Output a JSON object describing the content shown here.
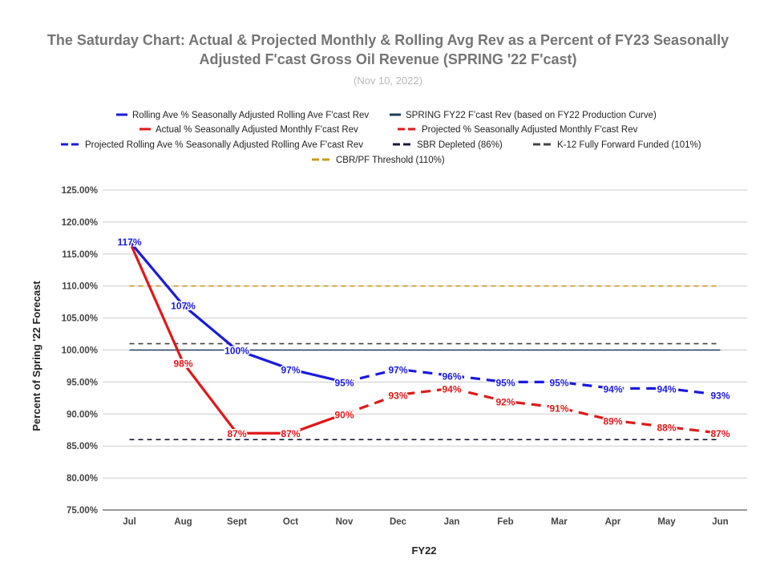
{
  "chart_data": {
    "type": "line",
    "title_line1": "The Saturday Chart: Actual & Projected Monthly & Rolling Avg Rev as a Percent of FY23 Seasonally",
    "title_line2": "Adjusted F'cast Gross Oil Revenue (SPRING '22 F'cast)",
    "subtitle": "(Nov 10, 2022)",
    "xlabel": "FY22",
    "ylabel": "Percent of Spring '22 Forecast",
    "categories": [
      "Jul",
      "Aug",
      "Sept",
      "Oct",
      "Nov",
      "Dec",
      "Jan",
      "Feb",
      "Mar",
      "Apr",
      "May",
      "Jun"
    ],
    "ylim": [
      75,
      125
    ],
    "yticks": [
      "75.00%",
      "80.00%",
      "85.00%",
      "90.00%",
      "95.00%",
      "100.00%",
      "105.00%",
      "110.00%",
      "115.00%",
      "120.00%",
      "125.00%"
    ],
    "grid": true,
    "legend_position": "top",
    "series": [
      {
        "name": "Rolling Ave % Seasonally Adjusted Rolling Ave F'cast Rev",
        "color": "#1a1ae0",
        "style": "solid",
        "values": [
          117,
          107,
          100,
          97,
          95,
          null,
          null,
          null,
          null,
          null,
          null,
          null
        ],
        "labels": [
          "117%",
          "107%",
          "100%",
          "97%",
          "95%",
          "",
          "",
          "",
          "",
          "",
          "",
          ""
        ]
      },
      {
        "name": "SPRING FY22 F'cast Rev (based on FY22 Production Curve)",
        "color": "#1d3c5a",
        "style": "solid",
        "values": [
          100,
          100,
          100,
          100,
          100,
          100,
          100,
          100,
          100,
          100,
          100,
          100
        ]
      },
      {
        "name": "Actual % Seasonally Adjusted Monthly F'cast Rev",
        "color": "#e01818",
        "style": "solid",
        "values": [
          117,
          98,
          87,
          87,
          90,
          null,
          null,
          null,
          null,
          null,
          null,
          null
        ],
        "labels": [
          "",
          "98%",
          "87%",
          "87%",
          "90%",
          "",
          "",
          "",
          "",
          "",
          "",
          ""
        ]
      },
      {
        "name": "Projected % Seasonally Adjusted Monthly F'cast Rev",
        "color": "#e01818",
        "style": "dashed",
        "values": [
          null,
          null,
          null,
          null,
          90,
          93,
          94,
          92,
          91,
          89,
          88,
          87
        ],
        "labels": [
          "",
          "",
          "",
          "",
          "",
          "93%",
          "94%",
          "92%",
          "91%",
          "89%",
          "88%",
          "87%"
        ]
      },
      {
        "name": "Projected Rolling Ave % Seasonally Adjusted Rolling Ave F'cast Rev",
        "color": "#1a1ae0",
        "style": "dashed",
        "values": [
          null,
          null,
          null,
          null,
          95,
          97,
          96,
          95,
          95,
          94,
          94,
          93
        ],
        "labels": [
          "",
          "",
          "",
          "",
          "",
          "97%",
          "96%",
          "95%",
          "95%",
          "94%",
          "94%",
          "93%"
        ]
      },
      {
        "name": "SBR Depleted (86%)",
        "color": "#1a1a3a",
        "style": "dashed",
        "values": [
          86,
          86,
          86,
          86,
          86,
          86,
          86,
          86,
          86,
          86,
          86,
          86
        ]
      },
      {
        "name": "K-12 Fully Forward Funded (101%)",
        "color": "#444444",
        "style": "dashed",
        "values": [
          101,
          101,
          101,
          101,
          101,
          101,
          101,
          101,
          101,
          101,
          101,
          101
        ]
      },
      {
        "name": "CBR/PF Threshold (110%)",
        "color": "#c99a1a",
        "style": "dashed",
        "values": [
          110,
          110,
          110,
          110,
          110,
          110,
          110,
          110,
          110,
          110,
          110,
          110
        ]
      }
    ]
  }
}
